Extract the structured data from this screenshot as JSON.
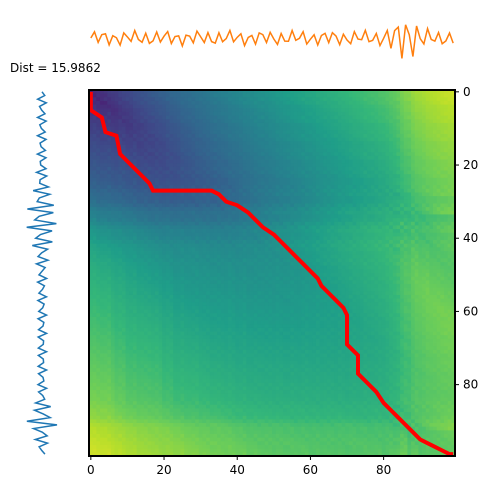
{
  "chart_data": {
    "type": "heatmap",
    "title": "",
    "annotation": "Dist = 15.9862",
    "colormap": "viridis",
    "grid": false,
    "matrix_size": 100,
    "x_axis": {
      "position": "bottom",
      "range": [
        0,
        99
      ],
      "ticks": [
        0,
        20,
        40,
        60,
        80
      ],
      "tick_labels": [
        "0",
        "20",
        "40",
        "60",
        "80"
      ]
    },
    "y_axis": {
      "position": "right",
      "range": [
        0,
        99
      ],
      "inverted": true,
      "ticks": [
        0,
        20,
        40,
        60,
        80
      ],
      "tick_labels": [
        "0",
        "20",
        "40",
        "60",
        "80"
      ]
    },
    "warp_path_color": "#ff0000",
    "warp_path": [
      [
        0,
        0
      ],
      [
        0,
        5
      ],
      [
        3,
        7
      ],
      [
        4,
        11
      ],
      [
        7,
        12
      ],
      [
        8,
        17
      ],
      [
        10,
        19
      ],
      [
        12,
        21
      ],
      [
        14,
        23
      ],
      [
        16,
        25
      ],
      [
        17,
        27
      ],
      [
        25,
        27
      ],
      [
        33,
        27
      ],
      [
        35,
        28
      ],
      [
        37,
        30
      ],
      [
        40,
        31
      ],
      [
        43,
        33
      ],
      [
        45,
        35
      ],
      [
        47,
        37
      ],
      [
        50,
        39
      ],
      [
        52,
        41
      ],
      [
        54,
        43
      ],
      [
        56,
        45
      ],
      [
        58,
        47
      ],
      [
        60,
        49
      ],
      [
        62,
        51
      ],
      [
        63,
        53
      ],
      [
        65,
        55
      ],
      [
        67,
        57
      ],
      [
        69,
        59
      ],
      [
        70,
        61
      ],
      [
        70,
        69
      ],
      [
        73,
        72
      ],
      [
        73,
        77
      ],
      [
        76,
        80
      ],
      [
        78,
        82
      ],
      [
        80,
        85
      ],
      [
        82,
        87
      ],
      [
        84,
        89
      ],
      [
        86,
        91
      ],
      [
        88,
        93
      ],
      [
        90,
        95
      ],
      [
        92,
        96
      ],
      [
        94,
        97
      ],
      [
        96,
        98
      ],
      [
        98,
        99
      ],
      [
        99,
        99
      ]
    ],
    "top_signal": {
      "color": "#ff7f0e",
      "length": 100
    },
    "left_signal": {
      "color": "#1f77b4",
      "length": 100
    }
  }
}
